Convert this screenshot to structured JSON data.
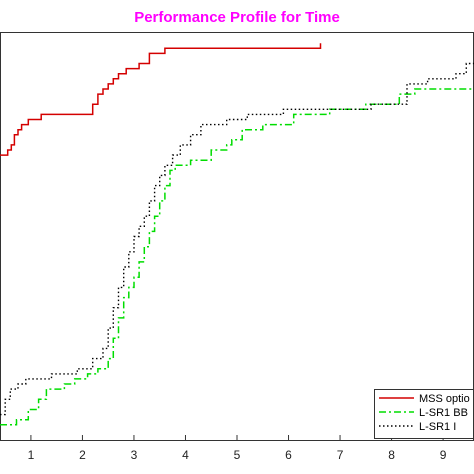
{
  "chart_data": {
    "type": "line",
    "title": "Performance Profile for Time",
    "title_color": "#ff00ff",
    "xlabel": "",
    "ylabel": "",
    "xlim": [
      0.4,
      9.6
    ],
    "ylim": [
      0.2,
      1.0
    ],
    "x_ticks": [
      "1",
      "2",
      "3",
      "4",
      "5",
      "6",
      "7",
      "8",
      "9"
    ],
    "grid": false,
    "legend_position": "bottom-right",
    "series": [
      {
        "name": "MSS optio",
        "color": "#d40000",
        "style": "solid",
        "points": [
          [
            0.4,
            0.76
          ],
          [
            0.55,
            0.76
          ],
          [
            0.55,
            0.77
          ],
          [
            0.62,
            0.77
          ],
          [
            0.62,
            0.78
          ],
          [
            0.68,
            0.78
          ],
          [
            0.68,
            0.8
          ],
          [
            0.75,
            0.8
          ],
          [
            0.75,
            0.81
          ],
          [
            0.82,
            0.81
          ],
          [
            0.82,
            0.82
          ],
          [
            0.95,
            0.82
          ],
          [
            0.95,
            0.83
          ],
          [
            1.2,
            0.83
          ],
          [
            1.2,
            0.84
          ],
          [
            2.2,
            0.84
          ],
          [
            2.2,
            0.86
          ],
          [
            2.3,
            0.86
          ],
          [
            2.3,
            0.88
          ],
          [
            2.4,
            0.88
          ],
          [
            2.4,
            0.89
          ],
          [
            2.5,
            0.89
          ],
          [
            2.5,
            0.9
          ],
          [
            2.6,
            0.9
          ],
          [
            2.6,
            0.91
          ],
          [
            2.7,
            0.91
          ],
          [
            2.7,
            0.92
          ],
          [
            2.85,
            0.92
          ],
          [
            2.85,
            0.93
          ],
          [
            3.1,
            0.93
          ],
          [
            3.1,
            0.94
          ],
          [
            3.3,
            0.94
          ],
          [
            3.3,
            0.96
          ],
          [
            3.6,
            0.96
          ],
          [
            3.6,
            0.97
          ],
          [
            4.3,
            0.97
          ],
          [
            6.62,
            0.97
          ],
          [
            6.62,
            0.98
          ]
        ]
      },
      {
        "name": "L-SR1 BB",
        "color": "#00dd00",
        "style": "dash-dot",
        "points": [
          [
            0.4,
            0.23
          ],
          [
            0.72,
            0.23
          ],
          [
            0.72,
            0.24
          ],
          [
            0.95,
            0.24
          ],
          [
            0.95,
            0.26
          ],
          [
            1.15,
            0.26
          ],
          [
            1.15,
            0.28
          ],
          [
            1.3,
            0.28
          ],
          [
            1.3,
            0.3
          ],
          [
            1.65,
            0.3
          ],
          [
            1.65,
            0.31
          ],
          [
            1.85,
            0.31
          ],
          [
            1.85,
            0.32
          ],
          [
            2.1,
            0.32
          ],
          [
            2.1,
            0.33
          ],
          [
            2.3,
            0.33
          ],
          [
            2.3,
            0.34
          ],
          [
            2.5,
            0.34
          ],
          [
            2.5,
            0.36
          ],
          [
            2.6,
            0.36
          ],
          [
            2.6,
            0.4
          ],
          [
            2.7,
            0.4
          ],
          [
            2.7,
            0.44
          ],
          [
            2.8,
            0.44
          ],
          [
            2.8,
            0.48
          ],
          [
            2.9,
            0.48
          ],
          [
            2.9,
            0.5
          ],
          [
            3.0,
            0.5
          ],
          [
            3.0,
            0.52
          ],
          [
            3.1,
            0.52
          ],
          [
            3.1,
            0.55
          ],
          [
            3.2,
            0.55
          ],
          [
            3.2,
            0.58
          ],
          [
            3.3,
            0.58
          ],
          [
            3.3,
            0.61
          ],
          [
            3.4,
            0.61
          ],
          [
            3.4,
            0.64
          ],
          [
            3.5,
            0.64
          ],
          [
            3.5,
            0.67
          ],
          [
            3.6,
            0.67
          ],
          [
            3.6,
            0.7
          ],
          [
            3.7,
            0.7
          ],
          [
            3.7,
            0.73
          ],
          [
            3.8,
            0.73
          ],
          [
            3.8,
            0.74
          ],
          [
            4.1,
            0.74
          ],
          [
            4.1,
            0.75
          ],
          [
            4.5,
            0.75
          ],
          [
            4.5,
            0.77
          ],
          [
            4.8,
            0.77
          ],
          [
            4.8,
            0.78
          ],
          [
            4.9,
            0.78
          ],
          [
            4.9,
            0.79
          ],
          [
            5.1,
            0.79
          ],
          [
            5.1,
            0.81
          ],
          [
            5.5,
            0.81
          ],
          [
            5.5,
            0.82
          ],
          [
            6.1,
            0.82
          ],
          [
            6.1,
            0.84
          ],
          [
            6.8,
            0.84
          ],
          [
            6.8,
            0.85
          ],
          [
            7.5,
            0.85
          ],
          [
            7.5,
            0.86
          ],
          [
            8.15,
            0.86
          ],
          [
            8.15,
            0.88
          ],
          [
            8.45,
            0.88
          ],
          [
            8.45,
            0.89
          ],
          [
            9.6,
            0.89
          ]
        ]
      },
      {
        "name": "L-SR1 I",
        "color": "#000000",
        "style": "dotted",
        "points": [
          [
            0.4,
            0.25
          ],
          [
            0.5,
            0.25
          ],
          [
            0.5,
            0.28
          ],
          [
            0.6,
            0.28
          ],
          [
            0.6,
            0.3
          ],
          [
            0.75,
            0.3
          ],
          [
            0.75,
            0.31
          ],
          [
            0.9,
            0.31
          ],
          [
            0.9,
            0.32
          ],
          [
            1.4,
            0.32
          ],
          [
            1.4,
            0.33
          ],
          [
            1.9,
            0.33
          ],
          [
            1.9,
            0.34
          ],
          [
            2.2,
            0.34
          ],
          [
            2.2,
            0.36
          ],
          [
            2.4,
            0.36
          ],
          [
            2.4,
            0.38
          ],
          [
            2.5,
            0.38
          ],
          [
            2.5,
            0.42
          ],
          [
            2.6,
            0.42
          ],
          [
            2.6,
            0.46
          ],
          [
            2.7,
            0.46
          ],
          [
            2.7,
            0.5
          ],
          [
            2.8,
            0.5
          ],
          [
            2.8,
            0.54
          ],
          [
            2.9,
            0.54
          ],
          [
            2.9,
            0.57
          ],
          [
            3.0,
            0.57
          ],
          [
            3.0,
            0.6
          ],
          [
            3.1,
            0.6
          ],
          [
            3.1,
            0.62
          ],
          [
            3.2,
            0.62
          ],
          [
            3.2,
            0.64
          ],
          [
            3.3,
            0.64
          ],
          [
            3.3,
            0.67
          ],
          [
            3.4,
            0.67
          ],
          [
            3.4,
            0.7
          ],
          [
            3.5,
            0.7
          ],
          [
            3.5,
            0.72
          ],
          [
            3.6,
            0.72
          ],
          [
            3.6,
            0.74
          ],
          [
            3.75,
            0.74
          ],
          [
            3.75,
            0.76
          ],
          [
            3.9,
            0.76
          ],
          [
            3.9,
            0.78
          ],
          [
            4.1,
            0.78
          ],
          [
            4.1,
            0.8
          ],
          [
            4.3,
            0.8
          ],
          [
            4.3,
            0.82
          ],
          [
            4.8,
            0.82
          ],
          [
            4.8,
            0.83
          ],
          [
            5.2,
            0.83
          ],
          [
            5.2,
            0.84
          ],
          [
            5.9,
            0.84
          ],
          [
            5.9,
            0.85
          ],
          [
            7.6,
            0.85
          ],
          [
            7.6,
            0.86
          ],
          [
            8.3,
            0.86
          ],
          [
            8.3,
            0.9
          ],
          [
            8.7,
            0.9
          ],
          [
            8.7,
            0.91
          ],
          [
            9.25,
            0.91
          ],
          [
            9.25,
            0.92
          ],
          [
            9.45,
            0.92
          ],
          [
            9.45,
            0.94
          ],
          [
            9.6,
            0.94
          ]
        ]
      }
    ]
  }
}
